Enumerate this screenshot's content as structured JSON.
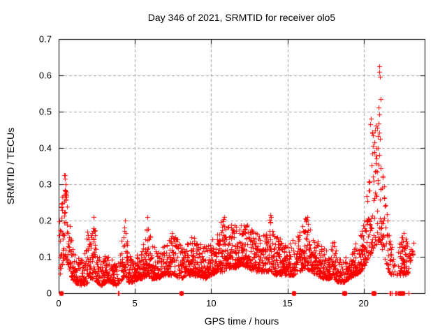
{
  "chart_data": {
    "type": "scatter",
    "title": "Day 346 of 2021, SRMTID for receiver olo5",
    "xlabel": "GPS time / hours",
    "ylabel": "SRMTID / TECUs",
    "xlim": [
      0,
      24
    ],
    "ylim": [
      0,
      0.7
    ],
    "xticks": [
      0,
      5,
      10,
      15,
      20
    ],
    "yticks": [
      0,
      0.1,
      0.2,
      0.3,
      0.4,
      0.5,
      0.6,
      0.7
    ],
    "grid": true,
    "legend": false,
    "marker": "plus",
    "marker_color": "#ff0000",
    "axis_color": "#000000",
    "grid_color": "#a0a0a0",
    "background": "#ffffff",
    "x_start": 0.05,
    "x_end": 23.3,
    "points_per_hour": 110,
    "distribution_power": 1.9,
    "seed": 346,
    "envelope": [
      [
        0.05,
        0.05,
        0.2,
        1
      ],
      [
        0.2,
        0.07,
        0.26,
        1
      ],
      [
        0.35,
        0.1,
        0.33,
        1.3
      ],
      [
        0.5,
        0.09,
        0.3,
        1.2
      ],
      [
        0.65,
        0.07,
        0.22,
        1
      ],
      [
        0.8,
        0.05,
        0.16,
        1
      ],
      [
        1.0,
        0.03,
        0.12,
        1
      ],
      [
        1.3,
        0.025,
        0.1,
        1
      ],
      [
        1.6,
        0.02,
        0.1,
        1
      ],
      [
        1.9,
        0.03,
        0.17,
        1
      ],
      [
        2.1,
        0.04,
        0.16,
        1
      ],
      [
        2.3,
        0.04,
        0.21,
        1.2
      ],
      [
        2.5,
        0.03,
        0.11,
        1
      ],
      [
        2.8,
        0.02,
        0.09,
        1
      ],
      [
        3.1,
        0.03,
        0.11,
        1
      ],
      [
        3.4,
        0.03,
        0.1,
        1
      ],
      [
        3.7,
        0.02,
        0.08,
        1
      ],
      [
        3.95,
        0.03,
        0.1,
        0.5
      ],
      [
        4.2,
        0.04,
        0.17,
        1
      ],
      [
        4.35,
        0.05,
        0.2,
        1.1
      ],
      [
        4.6,
        0.03,
        0.11,
        1
      ],
      [
        4.9,
        0.03,
        0.1,
        1
      ],
      [
        5.2,
        0.04,
        0.11,
        1
      ],
      [
        5.5,
        0.04,
        0.13,
        1
      ],
      [
        5.8,
        0.05,
        0.21,
        1.1
      ],
      [
        6.1,
        0.04,
        0.13,
        1
      ],
      [
        6.5,
        0.04,
        0.12,
        1
      ],
      [
        6.9,
        0.05,
        0.14,
        1
      ],
      [
        7.3,
        0.05,
        0.15,
        1
      ],
      [
        7.6,
        0.05,
        0.19,
        1
      ],
      [
        8.0,
        0.04,
        0.13,
        0.8
      ],
      [
        8.4,
        0.05,
        0.14,
        1
      ],
      [
        8.8,
        0.05,
        0.16,
        1
      ],
      [
        9.2,
        0.045,
        0.14,
        1
      ],
      [
        9.6,
        0.04,
        0.13,
        1
      ],
      [
        10.0,
        0.05,
        0.15,
        1
      ],
      [
        10.4,
        0.06,
        0.18,
        1
      ],
      [
        10.8,
        0.06,
        0.21,
        1.1
      ],
      [
        11.2,
        0.07,
        0.19,
        1.1
      ],
      [
        11.6,
        0.07,
        0.19,
        1.2
      ],
      [
        12.0,
        0.08,
        0.19,
        1.2
      ],
      [
        12.4,
        0.07,
        0.19,
        1.1
      ],
      [
        12.8,
        0.06,
        0.17,
        1
      ],
      [
        13.2,
        0.06,
        0.16,
        1
      ],
      [
        13.6,
        0.06,
        0.17,
        1
      ],
      [
        13.9,
        0.06,
        0.215,
        1.1
      ],
      [
        14.2,
        0.05,
        0.16,
        1
      ],
      [
        14.6,
        0.05,
        0.15,
        1
      ],
      [
        15.0,
        0.05,
        0.13,
        1
      ],
      [
        15.4,
        0.05,
        0.15,
        0.8
      ],
      [
        15.8,
        0.06,
        0.17,
        1
      ],
      [
        16.2,
        0.07,
        0.21,
        1
      ],
      [
        16.5,
        0.06,
        0.18,
        1
      ],
      [
        16.9,
        0.05,
        0.15,
        1
      ],
      [
        17.3,
        0.04,
        0.13,
        1
      ],
      [
        17.7,
        0.04,
        0.12,
        1
      ],
      [
        18.0,
        0.045,
        0.15,
        1
      ],
      [
        18.3,
        0.03,
        0.1,
        1
      ],
      [
        18.7,
        0.03,
        0.09,
        0.8
      ],
      [
        19.0,
        0.04,
        0.11,
        1
      ],
      [
        19.4,
        0.05,
        0.13,
        1
      ],
      [
        19.8,
        0.06,
        0.17,
        1
      ],
      [
        20.1,
        0.08,
        0.22,
        1
      ],
      [
        20.35,
        0.1,
        0.33,
        1
      ],
      [
        20.55,
        0.12,
        0.5,
        0.9
      ],
      [
        20.8,
        0.13,
        0.47,
        0.9
      ],
      [
        21.0,
        0.15,
        0.63,
        0.9
      ],
      [
        21.15,
        0.13,
        0.55,
        0.8
      ],
      [
        21.3,
        0.1,
        0.36,
        0.8
      ],
      [
        21.5,
        0.08,
        0.26,
        0.8
      ],
      [
        21.65,
        0.06,
        0.17,
        0.7
      ],
      [
        21.8,
        0.05,
        0.15,
        0.5
      ],
      [
        22.0,
        0.05,
        0.12,
        0.15
      ],
      [
        22.2,
        0.05,
        0.12,
        0.15
      ],
      [
        22.4,
        0.05,
        0.16,
        0.9
      ],
      [
        22.6,
        0.05,
        0.17,
        1.2
      ],
      [
        22.8,
        0.05,
        0.16,
        1.0
      ],
      [
        22.95,
        0.06,
        0.13,
        0.4
      ],
      [
        23.0,
        0.08,
        0.15,
        0.6
      ],
      [
        23.15,
        0.1,
        0.15,
        0.5
      ],
      [
        23.3,
        0.11,
        0.14,
        0.3
      ]
    ],
    "outliers": [
      [
        21.0,
        0.625
      ],
      [
        21.03,
        0.61
      ],
      [
        21.07,
        0.597
      ],
      [
        21.1,
        0.535
      ],
      [
        21.02,
        0.492
      ],
      [
        20.48,
        0.48
      ],
      [
        20.44,
        0.465
      ],
      [
        20.9,
        0.455
      ],
      [
        20.55,
        0.44
      ],
      [
        21.05,
        0.425
      ],
      [
        20.7,
        0.415
      ],
      [
        20.95,
        0.4
      ],
      [
        0.42,
        0.325
      ],
      [
        0.4,
        0.315
      ],
      [
        0.44,
        0.3
      ],
      [
        0.43,
        0.285
      ],
      [
        0.41,
        0.27
      ],
      [
        0.45,
        0.255
      ],
      [
        2.28,
        0.21
      ],
      [
        13.9,
        0.215
      ],
      [
        5.8,
        0.21
      ],
      [
        10.85,
        0.21
      ],
      [
        16.3,
        0.21
      ],
      [
        4.35,
        0.2
      ],
      [
        1.9,
        0.17
      ]
    ],
    "zero_clusters": [
      {
        "x1": 0.12,
        "x2": 0.18,
        "n": 8
      },
      {
        "x1": 3.88,
        "x2": 3.94,
        "n": 2
      },
      {
        "x1": 8.02,
        "x2": 8.08,
        "n": 6
      },
      {
        "x1": 15.38,
        "x2": 15.44,
        "n": 6
      },
      {
        "x1": 18.7,
        "x2": 18.76,
        "n": 6
      },
      {
        "x1": 20.62,
        "x2": 20.68,
        "n": 6
      },
      {
        "x1": 21.72,
        "x2": 21.74,
        "n": 2
      },
      {
        "x1": 21.84,
        "x2": 21.86,
        "n": 2
      },
      {
        "x1": 22.08,
        "x2": 22.1,
        "n": 2
      },
      {
        "x1": 22.3,
        "x2": 22.6,
        "n": 16
      },
      {
        "x1": 22.93,
        "x2": 22.95,
        "n": 2
      }
    ]
  }
}
